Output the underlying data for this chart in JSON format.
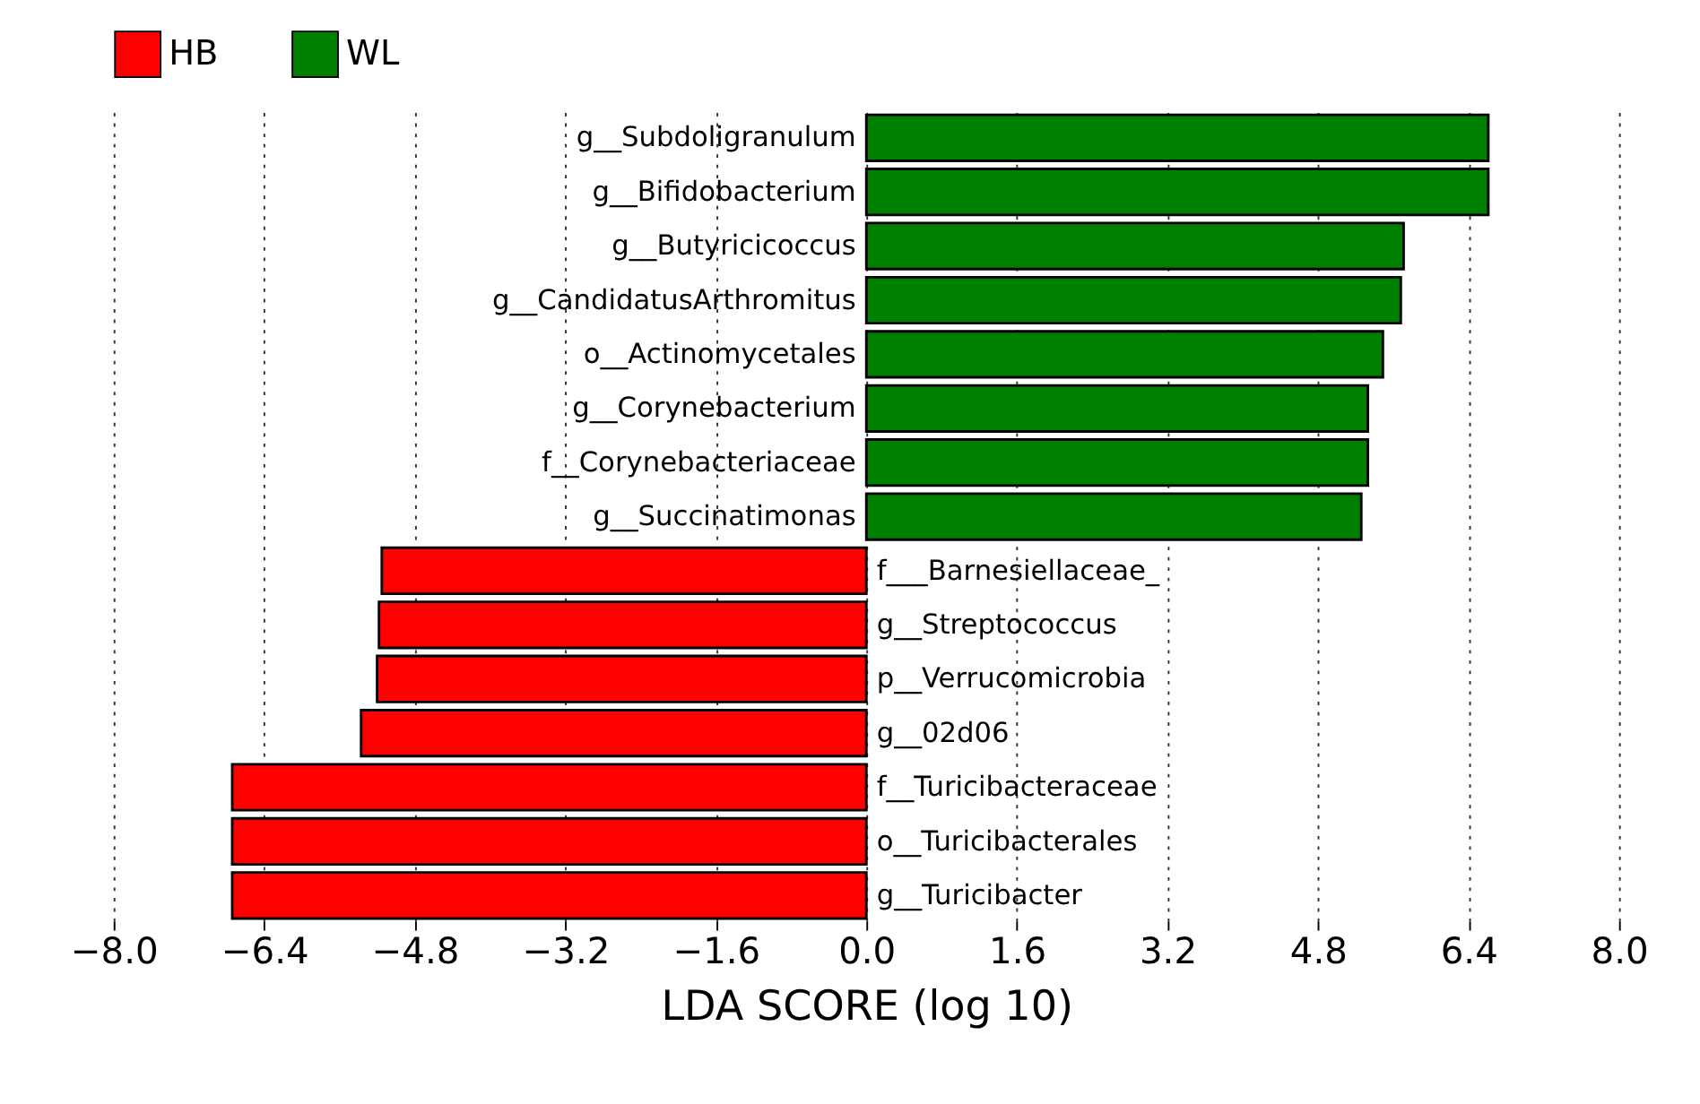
{
  "chart_data": {
    "type": "bar",
    "orientation": "horizontal",
    "xlabel": "LDA SCORE (log 10)",
    "categories": [
      "g__Subdoligranulum",
      "g__Bifidobacterium",
      "g__Butyricicoccus",
      "g__CandidatusArthromitus",
      "o__Actinomycetales",
      "g__Corynebacterium",
      "f__Corynebacteriaceae",
      "g__Succinatimonas",
      "f___Barnesiellaceae_",
      "g__Streptococcus",
      "p__Verrucomicrobia",
      "g__02d06",
      "f__Turicibacteraceae",
      "o__Turicibacterales",
      "g__Turicibacter"
    ],
    "series": [
      {
        "name": "HB",
        "color": "#ff0000",
        "values": [
          null,
          null,
          null,
          null,
          null,
          null,
          null,
          null,
          -5.15,
          -5.18,
          -5.2,
          -5.37,
          -6.74,
          -6.74,
          -6.74
        ]
      },
      {
        "name": "WL",
        "color": "#008000",
        "values": [
          6.61,
          6.61,
          5.71,
          5.68,
          5.49,
          5.33,
          5.33,
          5.26,
          null,
          null,
          null,
          null,
          null,
          null,
          null
        ]
      }
    ],
    "xlim": [
      -8.0,
      8.0
    ],
    "xticks": [
      {
        "value": -8.0,
        "label": "−8.0"
      },
      {
        "value": -6.4,
        "label": "−6.4"
      },
      {
        "value": -4.8,
        "label": "−4.8"
      },
      {
        "value": -3.2,
        "label": "−3.2"
      },
      {
        "value": -1.6,
        "label": "−1.6"
      },
      {
        "value": 0.0,
        "label": "0.0"
      },
      {
        "value": 1.6,
        "label": "1.6"
      },
      {
        "value": 3.2,
        "label": "3.2"
      },
      {
        "value": 4.8,
        "label": "4.8"
      },
      {
        "value": 6.4,
        "label": "6.4"
      },
      {
        "value": 8.0,
        "label": "8.0"
      }
    ],
    "grid": "x",
    "legend": "top left",
    "tick_labels": "x"
  }
}
